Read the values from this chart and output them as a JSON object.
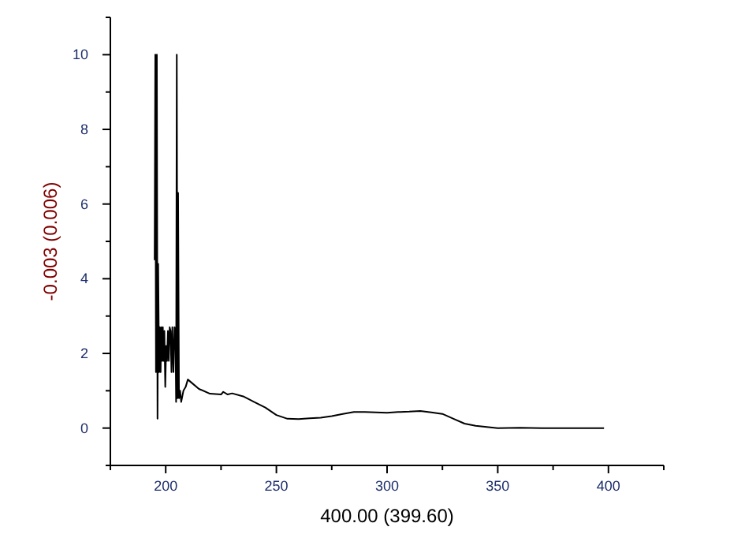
{
  "chart_data": {
    "type": "line",
    "xlabel": "400.00 (399.60)",
    "ylabel": "-0.003 (0.006)",
    "xlim": [
      175,
      425
    ],
    "ylim": [
      -1,
      11
    ],
    "xticks": [
      {
        "value": 175,
        "label": null
      },
      200,
      {
        "value": 225,
        "label": null
      },
      250,
      {
        "value": 275,
        "label": null
      },
      300,
      {
        "value": 325,
        "label": null
      },
      350,
      {
        "value": 375,
        "label": null
      },
      400,
      {
        "value": 425,
        "label": null
      }
    ],
    "yticks": [
      {
        "value": -1,
        "label": null
      },
      0,
      {
        "value": 1,
        "label": null
      },
      2,
      {
        "value": 3,
        "label": null
      },
      4,
      {
        "value": 5,
        "label": null
      },
      6,
      {
        "value": 7,
        "label": null
      },
      8,
      {
        "value": 9,
        "label": null
      },
      10,
      {
        "value": 11,
        "label": null
      }
    ],
    "grid": false,
    "series": [
      {
        "color": "#000000",
        "x": [
          195,
          195.3,
          195.6,
          196,
          196.3,
          196.6,
          197,
          197.3,
          197.7,
          198,
          198.4,
          198.7,
          199,
          199.4,
          199.8,
          200.2,
          200.6,
          201,
          201.4,
          201.8,
          202.2,
          202.6,
          203,
          203.5,
          204,
          204.4,
          204.7,
          205,
          205.3,
          205.6,
          206,
          206.5,
          207,
          208,
          209,
          210,
          212,
          215,
          220,
          225,
          226,
          228,
          230,
          235,
          240,
          245,
          250,
          255,
          260,
          265,
          270,
          275,
          280,
          285,
          290,
          295,
          300,
          305,
          310,
          315,
          320,
          325,
          330,
          335,
          340,
          345,
          350,
          360,
          370,
          380,
          398
        ],
        "values": [
          4.5,
          10,
          1.5,
          10,
          0.25,
          4.4,
          1.5,
          2.7,
          1.5,
          2.7,
          1.8,
          2.7,
          1.8,
          2.6,
          1.1,
          2.2,
          1.8,
          2.6,
          1.8,
          2.7,
          2.6,
          1.5,
          2.7,
          1.5,
          2.7,
          2.6,
          0.7,
          10,
          0.8,
          6.3,
          0.8,
          1.0,
          0.7,
          1.0,
          1.1,
          1.3,
          1.2,
          1.05,
          0.92,
          0.9,
          0.97,
          0.9,
          0.93,
          0.85,
          0.7,
          0.55,
          0.35,
          0.25,
          0.24,
          0.26,
          0.28,
          0.32,
          0.38,
          0.43,
          0.43,
          0.42,
          0.41,
          0.43,
          0.44,
          0.46,
          0.42,
          0.38,
          0.25,
          0.12,
          0.06,
          0.03,
          0.0,
          0.01,
          0.0,
          0.0,
          0.0
        ]
      }
    ]
  }
}
